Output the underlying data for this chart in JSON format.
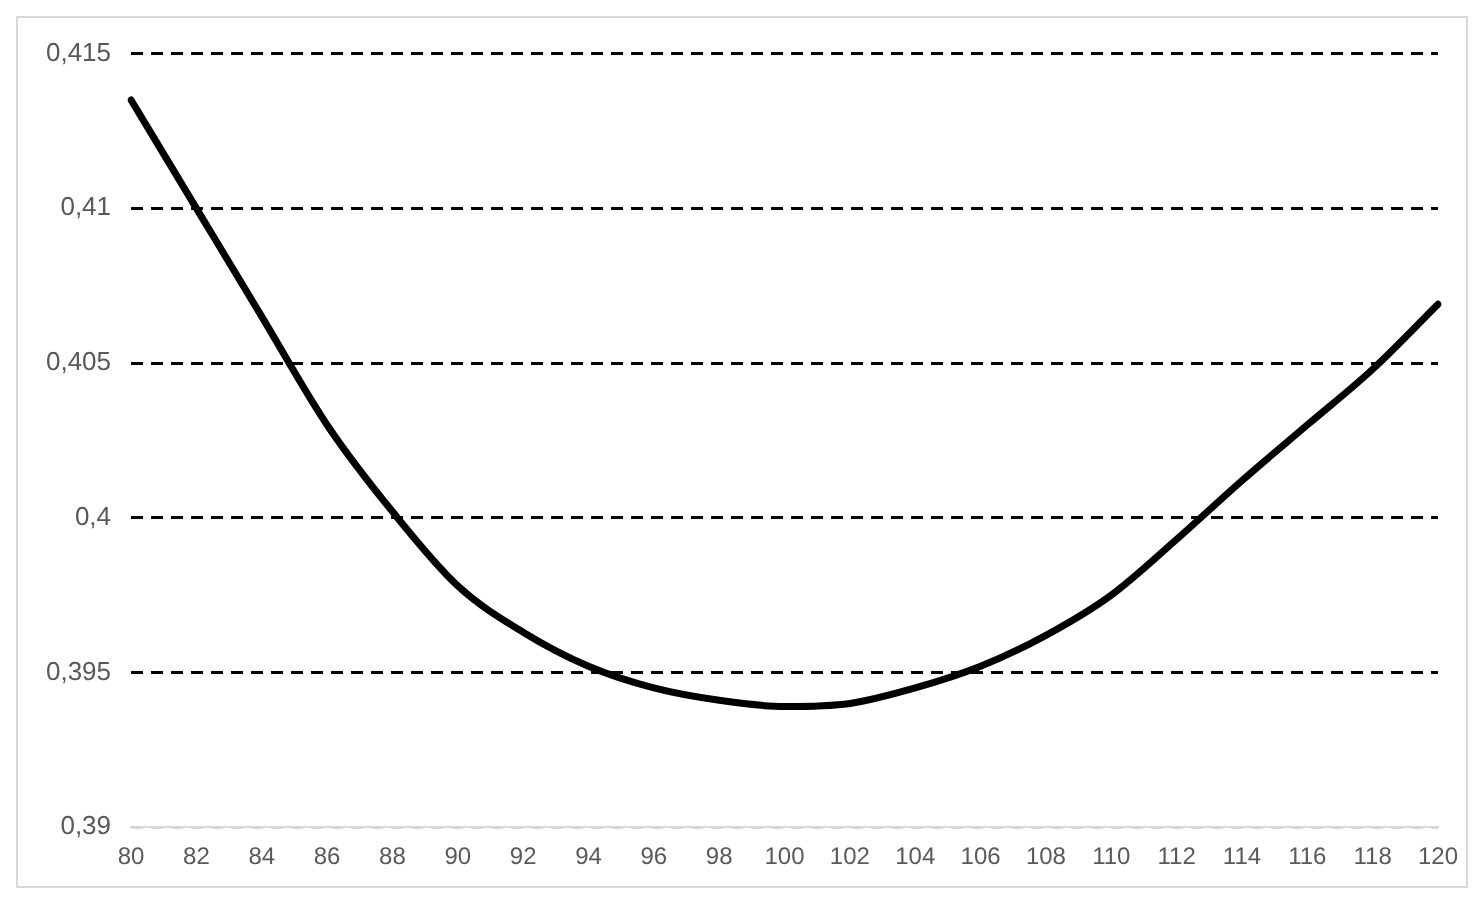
{
  "chart_data": {
    "type": "line",
    "categories": [
      "80",
      "82",
      "84",
      "86",
      "88",
      "90",
      "92",
      "94",
      "96",
      "98",
      "100",
      "102",
      "104",
      "106",
      "108",
      "110",
      "112",
      "114",
      "116",
      "118",
      "120"
    ],
    "series": [
      {
        "color": "#000000",
        "values": [
          0.4135,
          0.41,
          0.4065,
          0.403,
          0.4002,
          0.3978,
          0.3963,
          0.3952,
          0.3945,
          0.3941,
          0.3939,
          0.394,
          0.3945,
          0.3952,
          0.3962,
          0.3975,
          0.3993,
          0.4012,
          0.403,
          0.4048,
          0.4069
        ]
      }
    ],
    "ylim": [
      0.39,
      0.415
    ],
    "yticks": [
      {
        "value": 0.39,
        "label": "0,39"
      },
      {
        "value": 0.395,
        "label": "0,395"
      },
      {
        "value": 0.4,
        "label": "0,4"
      },
      {
        "value": 0.405,
        "label": "0,405"
      },
      {
        "value": 0.41,
        "label": "0,41"
      },
      {
        "value": 0.415,
        "label": "0,415"
      }
    ],
    "grid": "y",
    "legend": false,
    "marker": "none",
    "line_style": "solid"
  }
}
